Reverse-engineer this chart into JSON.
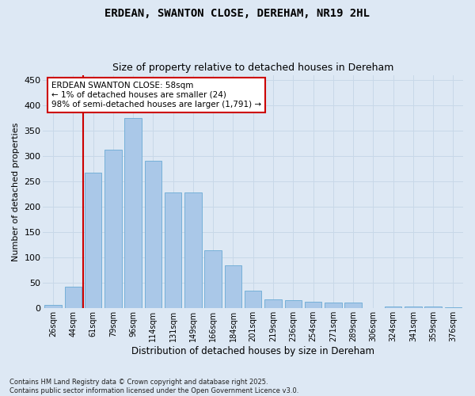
{
  "title": "ERDEAN, SWANTON CLOSE, DEREHAM, NR19 2HL",
  "subtitle": "Size of property relative to detached houses in Dereham",
  "xlabel": "Distribution of detached houses by size in Dereham",
  "ylabel": "Number of detached properties",
  "categories": [
    "26sqm",
    "44sqm",
    "61sqm",
    "79sqm",
    "96sqm",
    "114sqm",
    "131sqm",
    "149sqm",
    "166sqm",
    "184sqm",
    "201sqm",
    "219sqm",
    "236sqm",
    "254sqm",
    "271sqm",
    "289sqm",
    "306sqm",
    "324sqm",
    "341sqm",
    "359sqm",
    "376sqm"
  ],
  "values": [
    6,
    43,
    268,
    312,
    375,
    291,
    229,
    229,
    115,
    85,
    35,
    17,
    16,
    13,
    11,
    11,
    0,
    4,
    3,
    3,
    2
  ],
  "bar_color": "#aac8e8",
  "bar_edge_color": "#6aaad4",
  "vline_color": "#cc0000",
  "annotation_text": "ERDEAN SWANTON CLOSE: 58sqm\n← 1% of detached houses are smaller (24)\n98% of semi-detached houses are larger (1,791) →",
  "annotation_box_color": "#ffffff",
  "annotation_box_edge": "#cc0000",
  "ylim": [
    0,
    460
  ],
  "yticks": [
    0,
    50,
    100,
    150,
    200,
    250,
    300,
    350,
    400,
    450
  ],
  "grid_color": "#c8d8e8",
  "background_color": "#dde8f4",
  "footer_line1": "Contains HM Land Registry data © Crown copyright and database right 2025.",
  "footer_line2": "Contains public sector information licensed under the Open Government Licence v3.0."
}
